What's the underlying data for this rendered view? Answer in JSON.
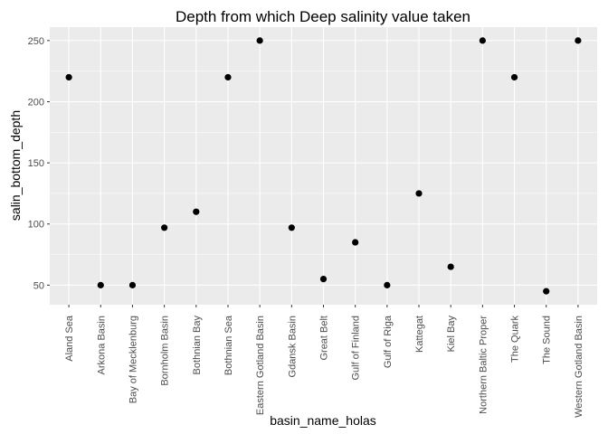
{
  "chart_data": {
    "type": "scatter",
    "title": "Depth from which Deep salinity value taken",
    "xlabel": "basin_name_holas",
    "ylabel": "salin_bottom_depth",
    "categories": [
      "Aland Sea",
      "Arkona Basin",
      "Bay of Mecklenburg",
      "Bornholm Basin",
      "Bothnian Bay",
      "Bothnian Sea",
      "Eastern Gotland Basin",
      "Gdansk Basin",
      "Great Belt",
      "Gulf of Finland",
      "Gulf of Riga",
      "Kattegat",
      "Kiel Bay",
      "Northern Baltic Proper",
      "The Quark",
      "The Sound",
      "Western Gotland Basin"
    ],
    "values": [
      220,
      50,
      50,
      97,
      110,
      220,
      250,
      97,
      55,
      85,
      50,
      125,
      65,
      250,
      220,
      45,
      250
    ],
    "yticks": [
      50,
      100,
      150,
      200,
      250
    ],
    "ylim": [
      34,
      261
    ],
    "grid": true,
    "legend": "none",
    "colors": {
      "panel": "#ebebeb",
      "grid_major": "#ffffff",
      "point": "#000000",
      "tick_label": "#4d4d4d"
    }
  }
}
